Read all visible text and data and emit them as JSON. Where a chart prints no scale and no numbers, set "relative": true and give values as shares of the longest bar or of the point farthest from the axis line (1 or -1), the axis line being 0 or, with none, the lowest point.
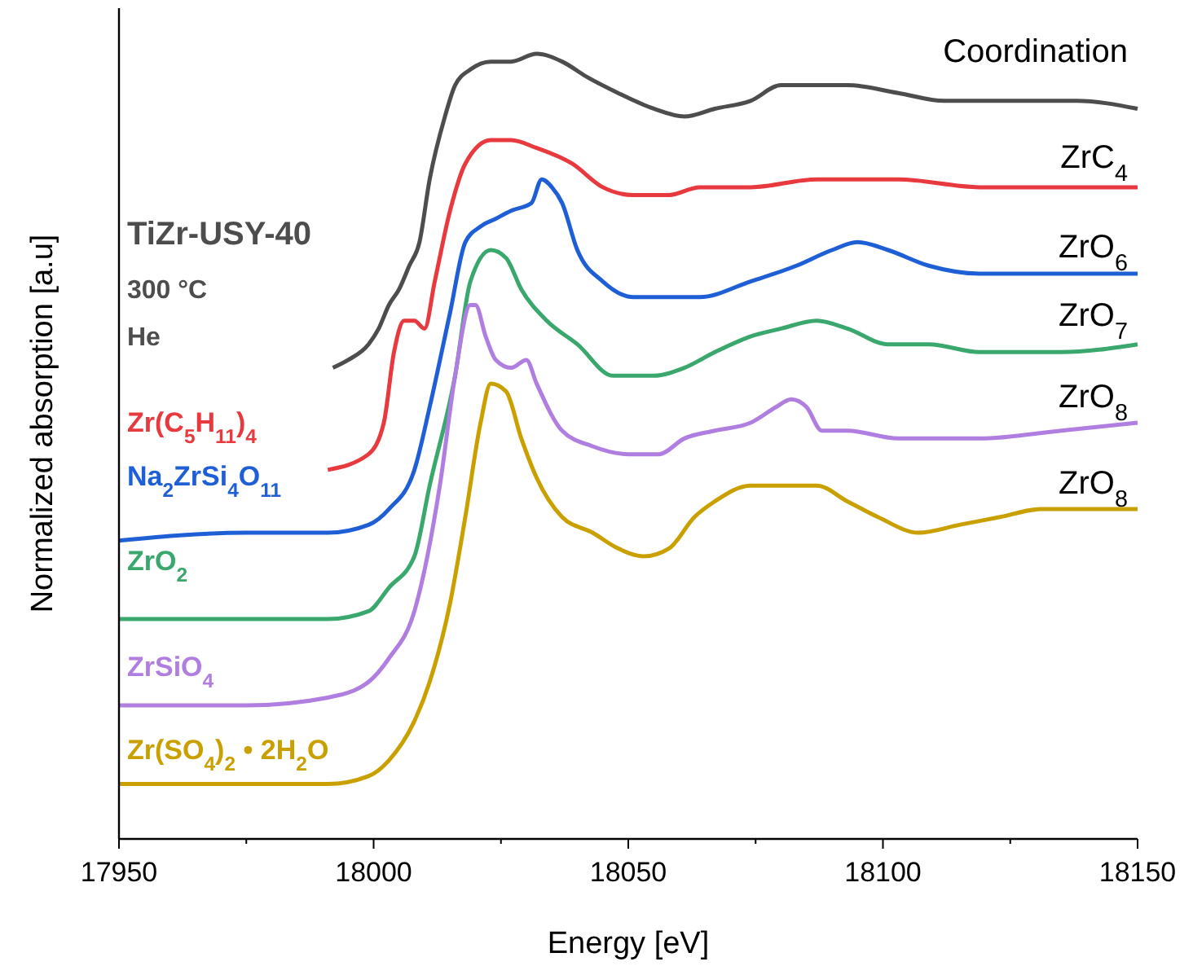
{
  "chart_data": {
    "type": "line",
    "relative": true,
    "xlabel": "Energy [eV]",
    "ylabel": "Normalized absorption [a.u]",
    "xlim": [
      17950,
      18150
    ],
    "xticks": [
      17950,
      18000,
      18050,
      18100,
      18150
    ],
    "tick_labels": "x",
    "marker": "none",
    "line_style": "solid",
    "annotations": [
      "300 °C",
      "He",
      "Coordination",
      "ZrC$_{4}$",
      "ZrO$_{6}$",
      "ZrO$_{7}$",
      "ZrO$_{8}$",
      "ZrO$_{8}$"
    ],
    "series": [
      {
        "name": "TiZr-USY-40",
        "color": "#4d4d4d",
        "x": [
          17992,
          17995,
          17999,
          18001,
          18003,
          18005,
          18007,
          18009,
          18011,
          18014,
          18016,
          18019,
          18023,
          18027,
          18032,
          18037,
          18042,
          18048,
          18055,
          18061,
          18067,
          18074,
          18080,
          18087,
          18093,
          18103,
          18112,
          18125,
          18138,
          18150
        ],
        "values": [
          0.6,
          0.61,
          0.63,
          0.65,
          0.68,
          0.7,
          0.73,
          0.76,
          0.84,
          0.92,
          0.96,
          0.98,
          0.99,
          0.99,
          1.0,
          0.99,
          0.97,
          0.95,
          0.93,
          0.92,
          0.93,
          0.94,
          0.96,
          0.96,
          0.96,
          0.95,
          0.94,
          0.94,
          0.94,
          0.93
        ]
      },
      {
        "name": "Zr(C$_{5}$H$_{11}$)$_{4}$",
        "color": "#e8393f",
        "x": [
          17991,
          17999,
          18002,
          18004,
          18006,
          18008,
          18010,
          18012,
          18015,
          18018,
          18023,
          18027,
          18032,
          18039,
          18045,
          18051,
          18058,
          18064,
          18074,
          18087,
          18103,
          18119,
          18135,
          18150
        ],
        "values": [
          0.47,
          0.49,
          0.53,
          0.62,
          0.66,
          0.66,
          0.65,
          0.71,
          0.8,
          0.86,
          0.89,
          0.89,
          0.88,
          0.86,
          0.83,
          0.82,
          0.82,
          0.83,
          0.83,
          0.84,
          0.84,
          0.83,
          0.83,
          0.83
        ]
      },
      {
        "name": "Na$_{2}$ZrSi$_{4}$O$_{11}$",
        "color": "#1f5fd6",
        "x": [
          17950,
          17975,
          17991,
          17999,
          18003,
          18008,
          18011,
          18015,
          18018,
          18021,
          18024,
          18027,
          18031,
          18033,
          18035,
          18037,
          18040,
          18045,
          18051,
          18058,
          18064,
          18074,
          18083,
          18090,
          18095,
          18101,
          18109,
          18119,
          18135,
          18150
        ],
        "values": [
          0.38,
          0.39,
          0.39,
          0.4,
          0.42,
          0.47,
          0.55,
          0.67,
          0.76,
          0.78,
          0.79,
          0.8,
          0.81,
          0.84,
          0.83,
          0.81,
          0.75,
          0.71,
          0.69,
          0.69,
          0.69,
          0.71,
          0.73,
          0.75,
          0.76,
          0.75,
          0.73,
          0.72,
          0.72,
          0.72
        ]
      },
      {
        "name": "ZrO$_{2}$",
        "color": "#3aa76d",
        "x": [
          17950,
          17975,
          17991,
          17999,
          18003,
          18008,
          18011,
          18016,
          18019,
          18023,
          18026,
          18029,
          18034,
          18040,
          18047,
          18055,
          18061,
          18067,
          18074,
          18080,
          18087,
          18093,
          18101,
          18109,
          18119,
          18135,
          18150
        ],
        "values": [
          0.28,
          0.28,
          0.28,
          0.29,
          0.32,
          0.36,
          0.45,
          0.59,
          0.71,
          0.75,
          0.74,
          0.7,
          0.66,
          0.63,
          0.59,
          0.59,
          0.6,
          0.62,
          0.64,
          0.65,
          0.66,
          0.65,
          0.63,
          0.63,
          0.62,
          0.62,
          0.63
        ]
      },
      {
        "name": "ZrSiO$_{4}$",
        "color": "#b07ee0",
        "x": [
          17950,
          17975,
          17991,
          17999,
          18003,
          18008,
          18013,
          18016,
          18019,
          18020,
          18022,
          18024,
          18027,
          18030,
          18032,
          18037,
          18043,
          18050,
          18056,
          18061,
          18067,
          18074,
          18079,
          18082,
          18085,
          18088,
          18093,
          18103,
          18119,
          18135,
          18150
        ],
        "values": [
          0.17,
          0.17,
          0.18,
          0.2,
          0.23,
          0.29,
          0.45,
          0.59,
          0.68,
          0.68,
          0.64,
          0.61,
          0.6,
          0.61,
          0.58,
          0.52,
          0.5,
          0.49,
          0.49,
          0.51,
          0.52,
          0.53,
          0.55,
          0.56,
          0.55,
          0.52,
          0.52,
          0.51,
          0.51,
          0.52,
          0.53
        ]
      },
      {
        "name": "Zr(SO$_{4}$)$_{2}$ • 2H$_{2}$O",
        "color": "#c9a000",
        "x": [
          17950,
          17975,
          17991,
          17999,
          18003,
          18008,
          18011,
          18015,
          18018,
          18021,
          18023,
          18026,
          18029,
          18032,
          18037,
          18043,
          18048,
          18053,
          18058,
          18063,
          18067,
          18074,
          18080,
          18087,
          18093,
          18099,
          18107,
          18115,
          18123,
          18131,
          18141,
          18150
        ],
        "values": [
          0.07,
          0.07,
          0.07,
          0.08,
          0.1,
          0.15,
          0.2,
          0.3,
          0.41,
          0.53,
          0.58,
          0.57,
          0.51,
          0.46,
          0.41,
          0.39,
          0.37,
          0.36,
          0.37,
          0.41,
          0.43,
          0.45,
          0.45,
          0.45,
          0.43,
          0.41,
          0.39,
          0.4,
          0.41,
          0.42,
          0.42,
          0.42
        ]
      }
    ]
  }
}
